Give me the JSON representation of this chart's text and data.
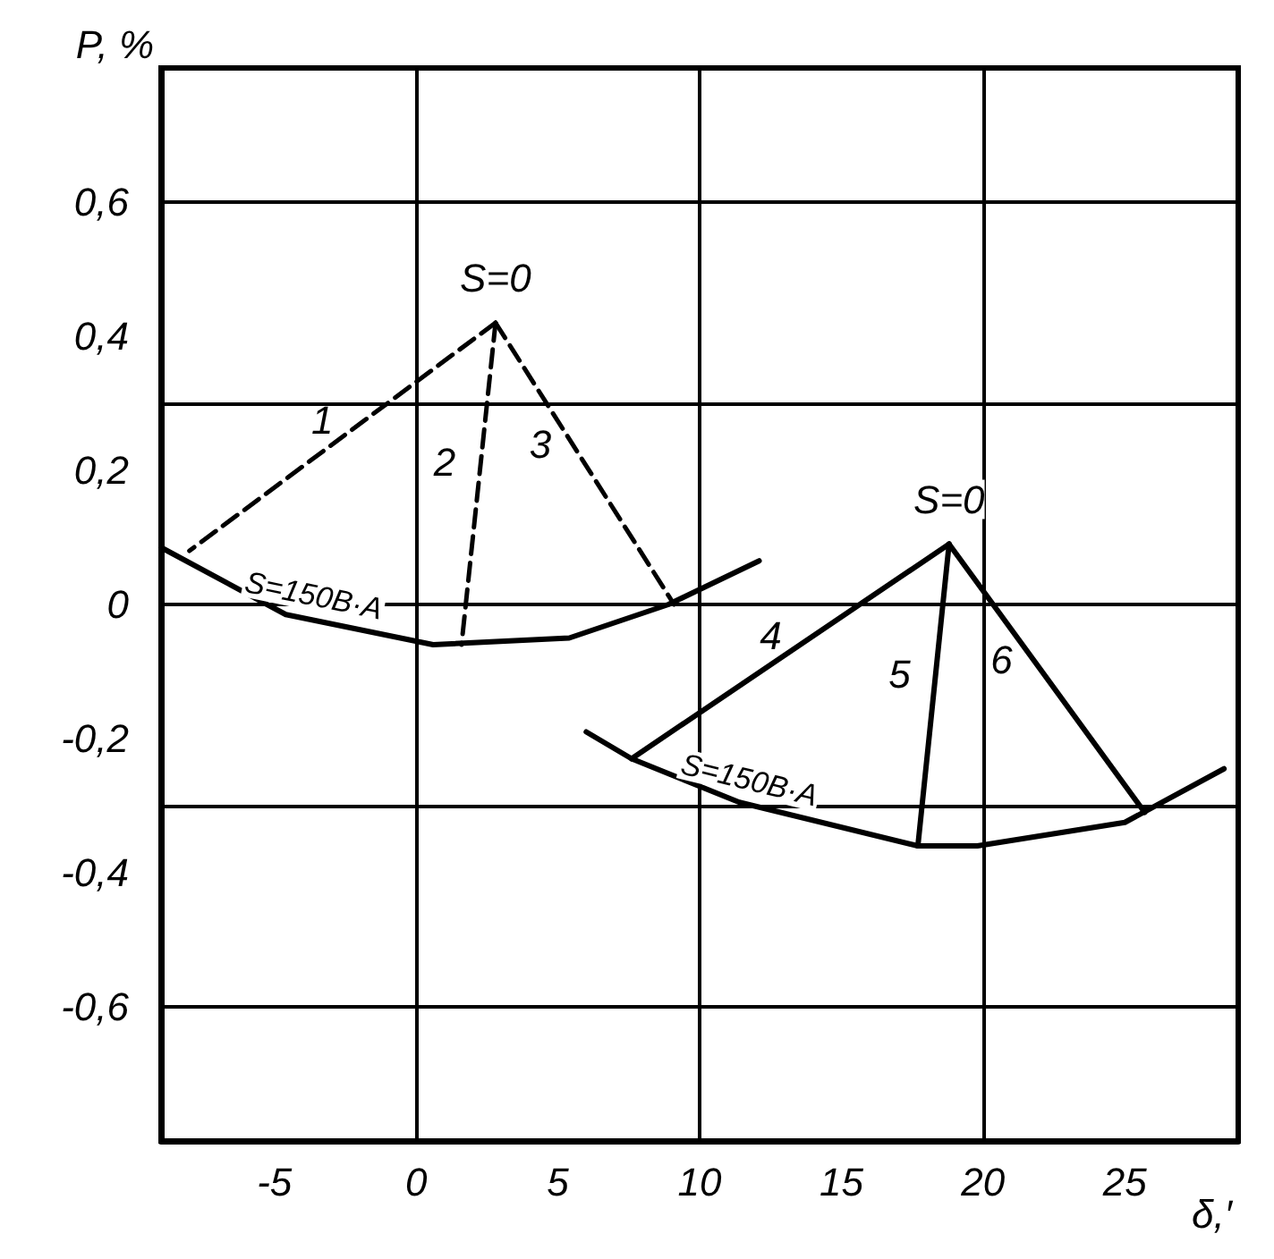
{
  "chart_data": {
    "type": "line",
    "xlabel": "δ,′",
    "ylabel": "P, %",
    "xlim": [
      -9,
      29
    ],
    "ylim": [
      -0.8,
      0.8
    ],
    "xticks": [
      -5,
      0,
      5,
      10,
      15,
      20,
      25
    ],
    "yticks": [
      {
        "value": -0.8,
        "label": null
      },
      {
        "value": -0.6,
        "label": "-0,6"
      },
      {
        "value": -0.4,
        "label": "-0,4"
      },
      {
        "value": -0.2,
        "label": "-0,2"
      },
      {
        "value": 0,
        "label": "0"
      },
      {
        "value": 0.2,
        "label": "0,2"
      },
      {
        "value": 0.4,
        "label": "0,4"
      },
      {
        "value": 0.6,
        "label": "0,6"
      },
      {
        "value": 0.8,
        "label": null
      }
    ],
    "grid": true,
    "legend": false,
    "marker": "none",
    "series": [
      {
        "color": "#000000",
        "line_style": "solid",
        "x": [
          -9,
          -4.6,
          0.6,
          5.4,
          8.9,
          12.1
        ],
        "values": [
          0.085,
          -0.015,
          -0.06,
          -0.05,
          0,
          0.065
        ]
      },
      {
        "name": "1",
        "color": "#000000",
        "line_style": "dashed",
        "x": [
          2.8,
          -8
        ],
        "values": [
          0.42,
          0.08
        ]
      },
      {
        "name": "2",
        "color": "#000000",
        "line_style": "dashed",
        "x": [
          2.8,
          1.6
        ],
        "values": [
          0.42,
          -0.06
        ]
      },
      {
        "name": "3",
        "color": "#000000",
        "line_style": "dashed",
        "x": [
          2.8,
          9.1
        ],
        "values": [
          0.42,
          0
        ]
      },
      {
        "color": "#000000",
        "line_style": "solid",
        "x": [
          6,
          7.6,
          11.4,
          17.7,
          19.8,
          25,
          28.5
        ],
        "values": [
          -0.19,
          -0.23,
          -0.295,
          -0.36,
          -0.36,
          -0.325,
          -0.245
        ]
      },
      {
        "name": "4",
        "color": "#000000",
        "line_style": "solid",
        "x": [
          18.8,
          7.6
        ],
        "values": [
          0.09,
          -0.23
        ]
      },
      {
        "name": "5",
        "color": "#000000",
        "line_style": "solid",
        "x": [
          18.8,
          17.7
        ],
        "values": [
          0.09,
          -0.36
        ]
      },
      {
        "name": "6",
        "color": "#000000",
        "line_style": "solid",
        "x": [
          18.8,
          25.7
        ],
        "values": [
          0.09,
          -0.31
        ]
      }
    ],
    "annotations": [
      {
        "text": "S=0",
        "x": 2.8,
        "y": 0.42
      },
      "S=150В·А",
      {
        "text": "S=0",
        "x": 18.8,
        "y": 0.09
      },
      "S=150В·А"
    ]
  }
}
